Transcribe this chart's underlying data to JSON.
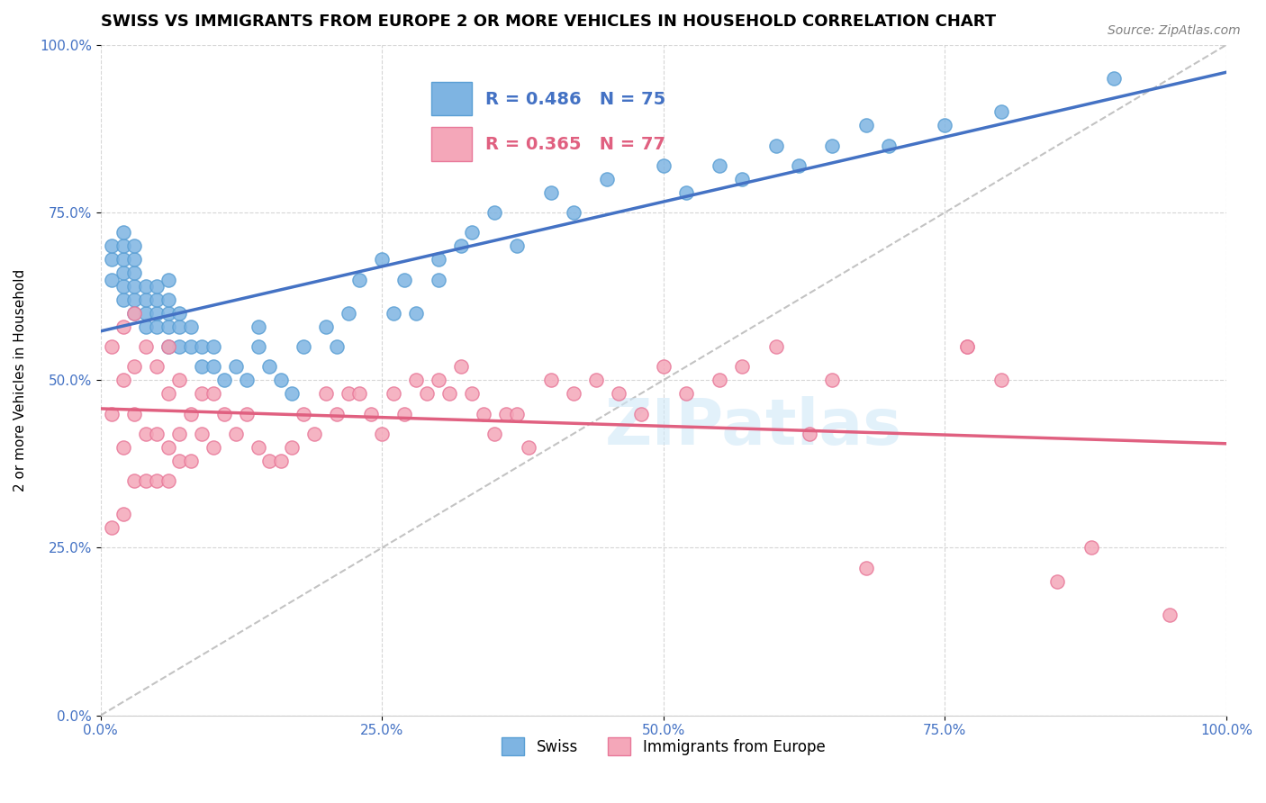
{
  "title": "SWISS VS IMMIGRANTS FROM EUROPE 2 OR MORE VEHICLES IN HOUSEHOLD CORRELATION CHART",
  "source": "Source: ZipAtlas.com",
  "xlabel_bottom": "",
  "ylabel": "2 or more Vehicles in Household",
  "xlim": [
    0,
    100
  ],
  "ylim": [
    0,
    100
  ],
  "xticks": [
    0,
    25,
    50,
    75,
    100
  ],
  "yticks": [
    0,
    25,
    50,
    75,
    100
  ],
  "xticklabels": [
    "0.0%",
    "25.0%",
    "50.0%",
    "75.0%",
    "100.0%"
  ],
  "yticklabels": [
    "0.0%",
    "25.0%",
    "50.0%",
    "75.0%",
    "100.0%"
  ],
  "swiss_color": "#7eb4e2",
  "swiss_edge_color": "#5a9fd4",
  "immig_color": "#f4a7b9",
  "immig_edge_color": "#e87899",
  "swiss_R": 0.486,
  "swiss_N": 75,
  "immig_R": 0.365,
  "immig_N": 77,
  "legend_swiss_label": "Swiss",
  "legend_immig_label": "Immigrants from Europe",
  "legend_R_color": "#4472c4",
  "legend_N_color": "#4472c4",
  "legend_immig_R_color": "#e06080",
  "regression_blue_color": "#4472c4",
  "regression_pink_color": "#e06080",
  "reference_line_color": "#aaaaaa",
  "watermark": "ZIPatlas",
  "swiss_x": [
    1,
    1,
    1,
    2,
    2,
    2,
    2,
    2,
    2,
    3,
    3,
    3,
    3,
    3,
    3,
    4,
    4,
    4,
    4,
    5,
    5,
    5,
    5,
    6,
    6,
    6,
    6,
    6,
    7,
    7,
    7,
    8,
    8,
    9,
    9,
    10,
    10,
    11,
    12,
    13,
    14,
    14,
    15,
    16,
    17,
    18,
    20,
    21,
    22,
    23,
    25,
    26,
    27,
    28,
    30,
    30,
    32,
    33,
    35,
    37,
    40,
    42,
    45,
    50,
    52,
    55,
    57,
    60,
    62,
    65,
    68,
    70,
    75,
    80,
    90
  ],
  "swiss_y": [
    65,
    68,
    70,
    62,
    64,
    66,
    68,
    70,
    72,
    60,
    62,
    64,
    66,
    68,
    70,
    58,
    60,
    62,
    64,
    58,
    60,
    62,
    64,
    55,
    58,
    60,
    62,
    65,
    55,
    58,
    60,
    55,
    58,
    52,
    55,
    52,
    55,
    50,
    52,
    50,
    55,
    58,
    52,
    50,
    48,
    55,
    58,
    55,
    60,
    65,
    68,
    60,
    65,
    60,
    65,
    68,
    70,
    72,
    75,
    70,
    78,
    75,
    80,
    82,
    78,
    82,
    80,
    85,
    82,
    85,
    88,
    85,
    88,
    90,
    95
  ],
  "immig_x": [
    1,
    1,
    1,
    2,
    2,
    2,
    2,
    3,
    3,
    3,
    3,
    4,
    4,
    4,
    5,
    5,
    5,
    6,
    6,
    6,
    6,
    7,
    7,
    7,
    8,
    8,
    9,
    9,
    10,
    10,
    11,
    12,
    13,
    14,
    15,
    16,
    17,
    18,
    19,
    20,
    21,
    22,
    23,
    24,
    25,
    26,
    27,
    28,
    29,
    30,
    31,
    32,
    33,
    34,
    35,
    36,
    37,
    38,
    40,
    42,
    44,
    46,
    48,
    50,
    52,
    55,
    57,
    60,
    63,
    65,
    68,
    80,
    85,
    88,
    95,
    77,
    77
  ],
  "immig_y": [
    28,
    45,
    55,
    30,
    40,
    50,
    58,
    35,
    45,
    52,
    60,
    35,
    42,
    55,
    35,
    42,
    52,
    35,
    40,
    48,
    55,
    38,
    42,
    50,
    38,
    45,
    42,
    48,
    40,
    48,
    45,
    42,
    45,
    40,
    38,
    38,
    40,
    45,
    42,
    48,
    45,
    48,
    48,
    45,
    42,
    48,
    45,
    50,
    48,
    50,
    48,
    52,
    48,
    45,
    42,
    45,
    45,
    40,
    50,
    48,
    50,
    48,
    45,
    52,
    48,
    50,
    52,
    55,
    42,
    50,
    22,
    50,
    20,
    25,
    15,
    55,
    55
  ]
}
